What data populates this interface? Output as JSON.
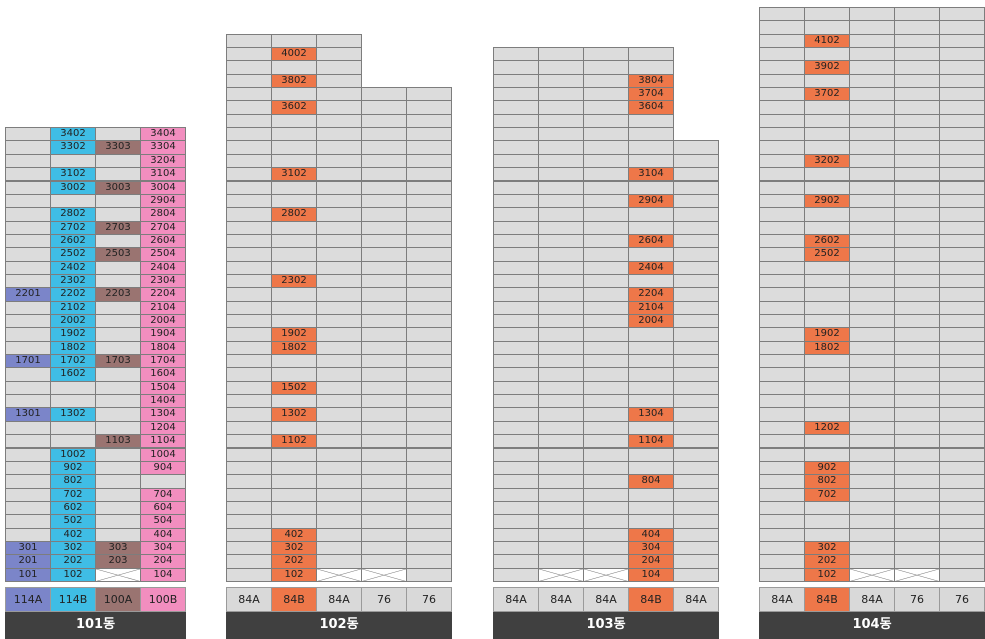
{
  "colors": {
    "empty": "#dcdcdc",
    "114A": "#7b85c9",
    "114B": "#3fbde5",
    "100A": "#9a7471",
    "100B": "#f28ebf",
    "84B": "#ee7749"
  },
  "buildings": [
    {
      "label": "101동",
      "max_floor": 34,
      "columns": [
        {
          "type": "114A",
          "colorKey": "114A",
          "max_floor": 34,
          "bottom": 1,
          "units": [
            {
              "floor": 22,
              "label": "2201"
            },
            {
              "floor": 17,
              "label": "1701"
            },
            {
              "floor": 13,
              "label": "1301"
            },
            {
              "floor": 3,
              "label": "301"
            },
            {
              "floor": 2,
              "label": "201"
            },
            {
              "floor": 1,
              "label": "101"
            }
          ]
        },
        {
          "type": "114B",
          "colorKey": "114B",
          "max_floor": 34,
          "bottom": 1,
          "units": [
            {
              "floor": 34,
              "label": "3402"
            },
            {
              "floor": 33,
              "label": "3302"
            },
            {
              "floor": 31,
              "label": "3102"
            },
            {
              "floor": 30,
              "label": "3002"
            },
            {
              "floor": 28,
              "label": "2802"
            },
            {
              "floor": 27,
              "label": "2702"
            },
            {
              "floor": 26,
              "label": "2602"
            },
            {
              "floor": 25,
              "label": "2502"
            },
            {
              "floor": 24,
              "label": "2402"
            },
            {
              "floor": 23,
              "label": "2302"
            },
            {
              "floor": 22,
              "label": "2202"
            },
            {
              "floor": 21,
              "label": "2102"
            },
            {
              "floor": 20,
              "label": "2002"
            },
            {
              "floor": 19,
              "label": "1902"
            },
            {
              "floor": 18,
              "label": "1802"
            },
            {
              "floor": 17,
              "label": "1702"
            },
            {
              "floor": 16,
              "label": "1602"
            },
            {
              "floor": 13,
              "label": "1302"
            },
            {
              "floor": 10,
              "label": "1002"
            },
            {
              "floor": 9,
              "label": "902"
            },
            {
              "floor": 8,
              "label": "802"
            },
            {
              "floor": 7,
              "label": "702"
            },
            {
              "floor": 6,
              "label": "602"
            },
            {
              "floor": 5,
              "label": "502"
            },
            {
              "floor": 4,
              "label": "402"
            },
            {
              "floor": 3,
              "label": "302"
            },
            {
              "floor": 2,
              "label": "202"
            },
            {
              "floor": 1,
              "label": "102"
            }
          ]
        },
        {
          "type": "100A",
          "colorKey": "100A",
          "max_floor": 34,
          "bottom": 2,
          "units": [
            {
              "floor": 33,
              "label": "3303"
            },
            {
              "floor": 30,
              "label": "3003"
            },
            {
              "floor": 27,
              "label": "2703"
            },
            {
              "floor": 25,
              "label": "2503"
            },
            {
              "floor": 22,
              "label": "2203"
            },
            {
              "floor": 17,
              "label": "1703"
            },
            {
              "floor": 11,
              "label": "1103"
            },
            {
              "floor": 3,
              "label": "303"
            },
            {
              "floor": 2,
              "label": "203"
            }
          ]
        },
        {
          "type": "100B",
          "colorKey": "100B",
          "max_floor": 34,
          "bottom": 1,
          "units": [
            {
              "floor": 34,
              "label": "3404"
            },
            {
              "floor": 33,
              "label": "3304"
            },
            {
              "floor": 32,
              "label": "3204"
            },
            {
              "floor": 31,
              "label": "3104"
            },
            {
              "floor": 30,
              "label": "3004"
            },
            {
              "floor": 29,
              "label": "2904"
            },
            {
              "floor": 28,
              "label": "2804"
            },
            {
              "floor": 27,
              "label": "2704"
            },
            {
              "floor": 26,
              "label": "2604"
            },
            {
              "floor": 25,
              "label": "2504"
            },
            {
              "floor": 24,
              "label": "2404"
            },
            {
              "floor": 23,
              "label": "2304"
            },
            {
              "floor": 22,
              "label": "2204"
            },
            {
              "floor": 21,
              "label": "2104"
            },
            {
              "floor": 20,
              "label": "2004"
            },
            {
              "floor": 19,
              "label": "1904"
            },
            {
              "floor": 18,
              "label": "1804"
            },
            {
              "floor": 17,
              "label": "1704"
            },
            {
              "floor": 16,
              "label": "1604"
            },
            {
              "floor": 15,
              "label": "1504"
            },
            {
              "floor": 14,
              "label": "1404"
            },
            {
              "floor": 13,
              "label": "1304"
            },
            {
              "floor": 12,
              "label": "1204"
            },
            {
              "floor": 11,
              "label": "1104"
            },
            {
              "floor": 10,
              "label": "1004"
            },
            {
              "floor": 9,
              "label": "904"
            },
            {
              "floor": 7,
              "label": "704"
            },
            {
              "floor": 6,
              "label": "604"
            },
            {
              "floor": 5,
              "label": "504"
            },
            {
              "floor": 4,
              "label": "404"
            },
            {
              "floor": 3,
              "label": "304"
            },
            {
              "floor": 2,
              "label": "204"
            },
            {
              "floor": 1,
              "label": "104"
            }
          ]
        }
      ]
    },
    {
      "label": "102동",
      "max_floor": 41,
      "columns": [
        {
          "type": "84A",
          "colorKey": "84B",
          "max_floor": 41,
          "bottom": 1,
          "units": []
        },
        {
          "type": "84B",
          "colorKey": "84B",
          "max_floor": 41,
          "bottom": 1,
          "units": [
            {
              "floor": 40,
              "label": "4002"
            },
            {
              "floor": 38,
              "label": "3802"
            },
            {
              "floor": 36,
              "label": "3602"
            },
            {
              "floor": 31,
              "label": "3102"
            },
            {
              "floor": 28,
              "label": "2802"
            },
            {
              "floor": 23,
              "label": "2302"
            },
            {
              "floor": 19,
              "label": "1902"
            },
            {
              "floor": 18,
              "label": "1802"
            },
            {
              "floor": 15,
              "label": "1502"
            },
            {
              "floor": 13,
              "label": "1302"
            },
            {
              "floor": 11,
              "label": "1102"
            },
            {
              "floor": 4,
              "label": "402"
            },
            {
              "floor": 3,
              "label": "302"
            },
            {
              "floor": 2,
              "label": "202"
            },
            {
              "floor": 1,
              "label": "102"
            }
          ]
        },
        {
          "type": "84A",
          "colorKey": "84B",
          "max_floor": 41,
          "bottom": 2,
          "units": []
        },
        {
          "type": "76",
          "colorKey": "84B",
          "max_floor": 37,
          "bottom": 2,
          "units": []
        },
        {
          "type": "76",
          "colorKey": "84B",
          "max_floor": 37,
          "bottom": 1,
          "units": []
        }
      ]
    },
    {
      "label": "103동",
      "max_floor": 40,
      "columns": [
        {
          "type": "84A",
          "colorKey": "84B",
          "max_floor": 40,
          "bottom": 1,
          "units": []
        },
        {
          "type": "84A",
          "colorKey": "84B",
          "max_floor": 40,
          "bottom": 2,
          "units": []
        },
        {
          "type": "84A",
          "colorKey": "84B",
          "max_floor": 40,
          "bottom": 2,
          "units": []
        },
        {
          "type": "84B",
          "colorKey": "84B",
          "max_floor": 40,
          "bottom": 1,
          "units": [
            {
              "floor": 38,
              "label": "3804"
            },
            {
              "floor": 37,
              "label": "3704"
            },
            {
              "floor": 36,
              "label": "3604"
            },
            {
              "floor": 31,
              "label": "3104"
            },
            {
              "floor": 29,
              "label": "2904"
            },
            {
              "floor": 26,
              "label": "2604"
            },
            {
              "floor": 24,
              "label": "2404"
            },
            {
              "floor": 22,
              "label": "2204"
            },
            {
              "floor": 21,
              "label": "2104"
            },
            {
              "floor": 20,
              "label": "2004"
            },
            {
              "floor": 13,
              "label": "1304"
            },
            {
              "floor": 11,
              "label": "1104"
            },
            {
              "floor": 8,
              "label": "804"
            },
            {
              "floor": 4,
              "label": "404"
            },
            {
              "floor": 3,
              "label": "304"
            },
            {
              "floor": 2,
              "label": "204"
            },
            {
              "floor": 1,
              "label": "104"
            }
          ]
        },
        {
          "type": "84A",
          "colorKey": "84B",
          "max_floor": 33,
          "bottom": 1,
          "units": []
        }
      ]
    },
    {
      "label": "104동",
      "max_floor": 43,
      "columns": [
        {
          "type": "84A",
          "colorKey": "84B",
          "max_floor": 43,
          "bottom": 1,
          "units": []
        },
        {
          "type": "84B",
          "colorKey": "84B",
          "max_floor": 43,
          "bottom": 1,
          "units": [
            {
              "floor": 41,
              "label": "4102"
            },
            {
              "floor": 39,
              "label": "3902"
            },
            {
              "floor": 37,
              "label": "3702"
            },
            {
              "floor": 32,
              "label": "3202"
            },
            {
              "floor": 29,
              "label": "2902"
            },
            {
              "floor": 26,
              "label": "2602"
            },
            {
              "floor": 25,
              "label": "2502"
            },
            {
              "floor": 19,
              "label": "1902"
            },
            {
              "floor": 18,
              "label": "1802"
            },
            {
              "floor": 12,
              "label": "1202"
            },
            {
              "floor": 9,
              "label": "902"
            },
            {
              "floor": 8,
              "label": "802"
            },
            {
              "floor": 7,
              "label": "702"
            },
            {
              "floor": 3,
              "label": "302"
            },
            {
              "floor": 2,
              "label": "202"
            },
            {
              "floor": 1,
              "label": "102"
            }
          ]
        },
        {
          "type": "84A",
          "colorKey": "84B",
          "max_floor": 43,
          "bottom": 2,
          "units": []
        },
        {
          "type": "76",
          "colorKey": "84B",
          "max_floor": 43,
          "bottom": 2,
          "units": []
        },
        {
          "type": "76",
          "colorKey": "84B",
          "max_floor": 43,
          "bottom": 1,
          "units": []
        }
      ]
    }
  ]
}
